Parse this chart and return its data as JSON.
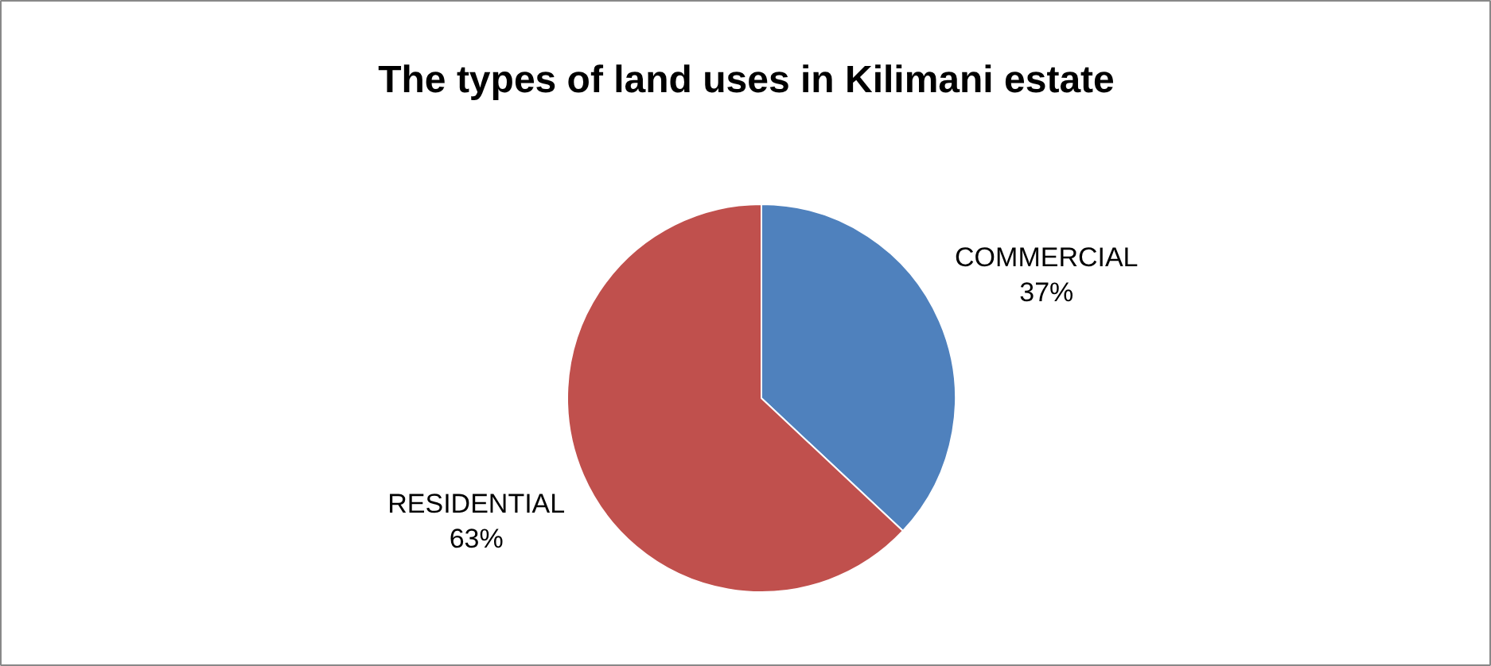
{
  "chart_data": {
    "type": "pie",
    "title": "The types of land uses in Kilimani estate",
    "categories": [
      "COMMERCIAL",
      "RESIDENTIAL"
    ],
    "values": [
      37,
      63
    ],
    "value_labels": [
      "37%",
      "63%"
    ],
    "colors": [
      "#4f81bd",
      "#c0504d"
    ]
  }
}
